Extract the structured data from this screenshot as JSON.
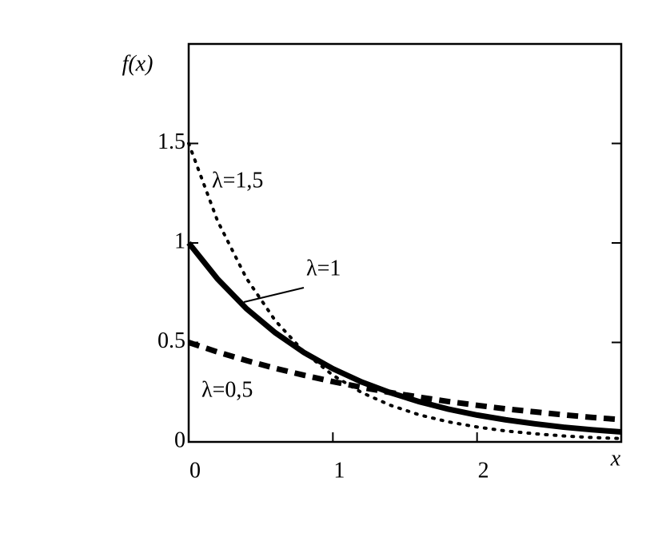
{
  "chart_data": {
    "type": "line",
    "y_label": "f(x)",
    "x_label": "x",
    "x": [
      0,
      0.2,
      0.4,
      0.6,
      0.8,
      1.0,
      1.2,
      1.4,
      1.6,
      1.8,
      2.0,
      2.2,
      2.4,
      2.6,
      2.8,
      3.0
    ],
    "series": [
      {
        "name": "λ=1,5",
        "color": "#000000",
        "style": "dotted",
        "values": [
          1.5,
          1.111,
          0.823,
          0.61,
          0.452,
          0.335,
          0.248,
          0.184,
          0.136,
          0.101,
          0.075,
          0.055,
          0.041,
          0.03,
          0.022,
          0.017
        ]
      },
      {
        "name": "λ=1",
        "color": "#000000",
        "style": "solid",
        "values": [
          1,
          0.819,
          0.67,
          0.549,
          0.449,
          0.368,
          0.301,
          0.247,
          0.202,
          0.165,
          0.135,
          0.111,
          0.091,
          0.074,
          0.061,
          0.05
        ]
      },
      {
        "name": "λ=0,5",
        "color": "#000000",
        "style": "dashed",
        "values": [
          0.5,
          0.452,
          0.409,
          0.37,
          0.335,
          0.303,
          0.274,
          0.248,
          0.225,
          0.203,
          0.184,
          0.166,
          0.151,
          0.136,
          0.123,
          0.112
        ]
      }
    ],
    "xlim": [
      0,
      3
    ],
    "ylim": [
      0,
      2
    ],
    "xticks": [
      0,
      1,
      2
    ],
    "yticks": [
      0,
      0.5,
      1,
      1.5
    ],
    "grid": false
  }
}
